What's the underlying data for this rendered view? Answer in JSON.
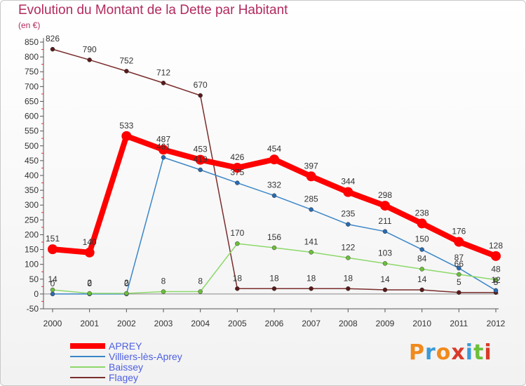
{
  "header": {
    "title": "Evolution du Montant de la Dette par Habitant",
    "unit": "(en €)"
  },
  "logo": {
    "text": "Proxiti",
    "colors": [
      "#f08a1c",
      "#3a9ad9",
      "#f08a1c",
      "#d93a2a",
      "#3a9ad9",
      "#6cbf3a",
      "#d93a2a"
    ]
  },
  "chart_data": {
    "type": "line",
    "title": "Evolution du Montant de la Dette par Habitant",
    "ylabel": "(en €)",
    "xlabel": "",
    "x": [
      "2000",
      "2001",
      "2002",
      "2003",
      "2004",
      "2005",
      "2006",
      "2007",
      "2008",
      "2009",
      "2010",
      "2011",
      "2012"
    ],
    "ylim": [
      -50,
      850
    ],
    "yticks": [
      -50,
      0,
      50,
      100,
      150,
      200,
      250,
      300,
      350,
      400,
      450,
      500,
      550,
      600,
      650,
      700,
      750,
      800,
      850
    ],
    "grid": false,
    "legend_position": "bottom-left",
    "series": [
      {
        "name": "APREY",
        "color": "#ff0000",
        "values": [
          151,
          140,
          533,
          487,
          453,
          426,
          454,
          397,
          344,
          298,
          238,
          176,
          128
        ]
      },
      {
        "name": "Villiers-lès-Aprey",
        "color": "#3a86c8",
        "values": [
          0,
          0,
          0,
          461,
          419,
          375,
          332,
          285,
          235,
          211,
          150,
          87,
          12
        ]
      },
      {
        "name": "Baissey",
        "color": "#8cd86a",
        "values": [
          14,
          2,
          2,
          8,
          8,
          170,
          156,
          141,
          122,
          103,
          84,
          66,
          48
        ]
      },
      {
        "name": "Flagey",
        "color": "#7a2c2c",
        "values": [
          826,
          790,
          752,
          712,
          670,
          18,
          18,
          18,
          18,
          14,
          14,
          5,
          5
        ]
      }
    ],
    "data_labels": [
      {
        "series": 0,
        "labels": [
          "151",
          "140",
          "533",
          "487",
          "453",
          "426",
          "454",
          "397",
          "344",
          "298",
          "238",
          "176",
          "128"
        ]
      },
      {
        "series": 1,
        "labels": [
          "0",
          "0",
          "0",
          "461",
          "419",
          "375",
          "332",
          "285",
          "235",
          "211",
          "150",
          "87",
          "12"
        ]
      },
      {
        "series": 2,
        "labels": [
          "14",
          "2",
          "2",
          "8",
          "8",
          "170",
          "156",
          "141",
          "122",
          "103",
          "84",
          "66",
          "48"
        ]
      },
      {
        "series": 3,
        "labels": [
          "826",
          "790",
          "752",
          "712",
          "670",
          "18",
          "18",
          "18",
          "18",
          "14",
          "14",
          "5",
          "5"
        ]
      }
    ]
  }
}
